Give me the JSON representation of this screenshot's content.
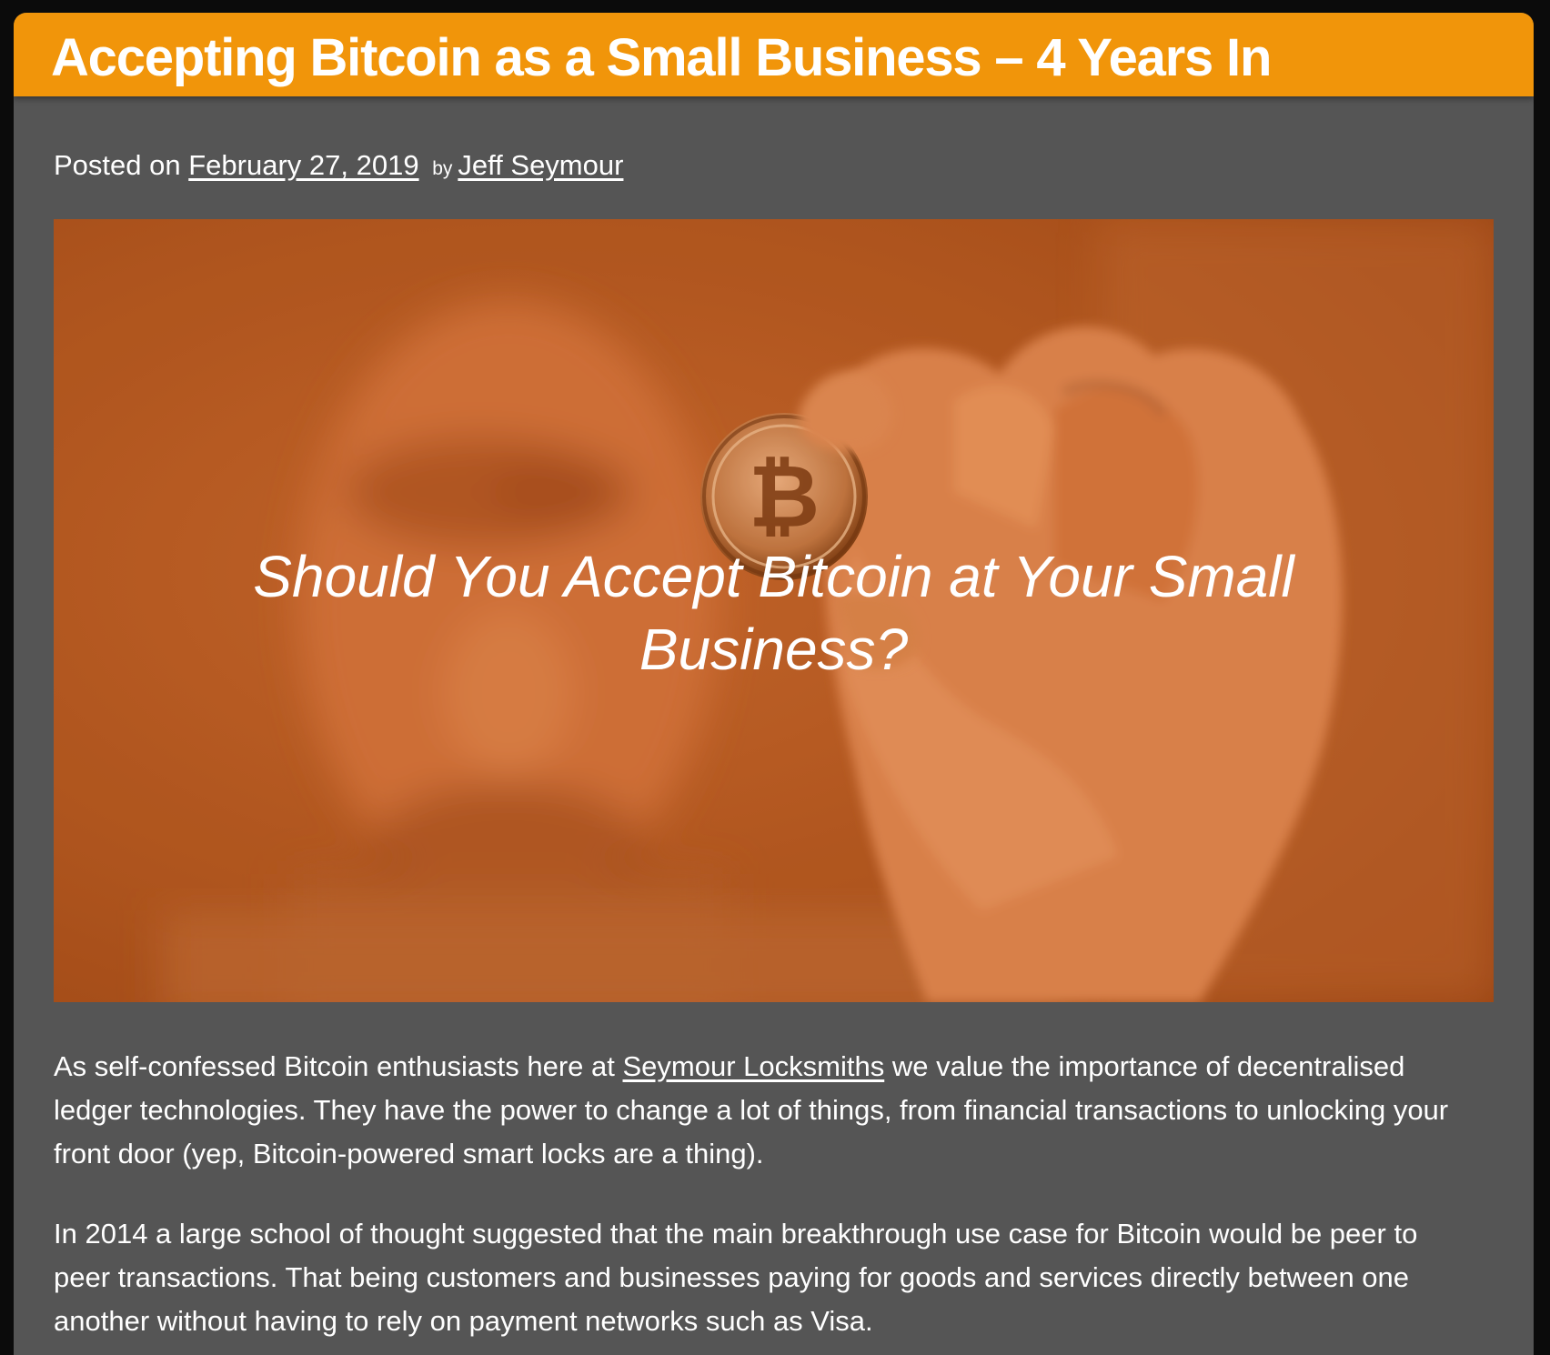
{
  "post": {
    "title": "Accepting Bitcoin as a Small Business – 4 Years In",
    "meta": {
      "posted_on": "Posted on",
      "date": "February 27, 2019",
      "by": "by",
      "author": "Jeff Seymour"
    },
    "hero": {
      "caption_line1": "Should You Accept Bitcoin at Your Small",
      "caption_line2": "Business?"
    },
    "paragraphs": [
      {
        "line1_before_link": "As self-confessed Bitcoin enthusiasts here at ",
        "link": "Seymour Locksmiths",
        "line1_after_link": " we value the importance of decentralised",
        "line2": "ledger technologies. They have the power to change a lot of things, from financial transactions to unlocking your",
        "line3": "front door (yep, Bitcoin-powered smart locks are a thing)."
      },
      {
        "line1": "In 2014 a large school of thought suggested that the main breakthrough use case for Bitcoin would be peer to",
        "line2": "peer transactions. That being customers and businesses paying for goods and services directly between one",
        "line3": "another without having to rely on payment networks such as Visa."
      }
    ]
  },
  "colors": {
    "title_bar": "#f1950a",
    "article_bg": "#555555",
    "page_bg": "#0b0b0b",
    "hero_tint": "#b2561f",
    "text": "#ffffff"
  },
  "icons": {
    "coin": "bitcoin-coin"
  }
}
